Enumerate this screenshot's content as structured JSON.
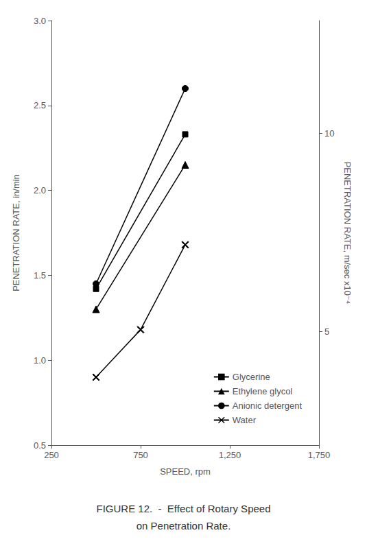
{
  "chart_data": {
    "type": "line",
    "title": "FIGURE 12.  -  Effect of Rotary Speed",
    "subtitle": "on Penetration Rate.",
    "x_label": "SPEED, rpm",
    "y_label": "PENETRATION RATE, in/min",
    "y2_label": "PENETRATION RATE, m/sec x10⁻⁴",
    "series": [
      {
        "name": "Glycerine",
        "color": "#000000",
        "marker": "square",
        "x": [
          500,
          1000
        ],
        "values": [
          1.42,
          2.33
        ]
      },
      {
        "name": "Ethylene glycol",
        "color": "#000000",
        "marker": "triangle",
        "x": [
          500,
          1000
        ],
        "values": [
          1.3,
          2.15
        ]
      },
      {
        "name": "Anionic detergent",
        "color": "#000000",
        "marker": "circle",
        "x": [
          500,
          1000
        ],
        "values": [
          1.45,
          2.6
        ]
      },
      {
        "name": "Water",
        "color": "#000000",
        "marker": "x",
        "x": [
          500,
          750,
          1000
        ],
        "values": [
          0.9,
          1.18,
          1.68
        ]
      }
    ],
    "xlim": [
      250,
      1750
    ],
    "xticks": [
      250,
      750,
      {
        "value": 1250,
        "label": "1,250"
      },
      {
        "value": 1750,
        "label": "1,750"
      }
    ],
    "ylim": [
      0.5,
      3.0
    ],
    "yticks": [
      0.5,
      {
        "value": 1.0,
        "label": "1.0"
      },
      1.5,
      {
        "value": 2.0,
        "label": "2.0"
      },
      2.5,
      {
        "value": 3.0,
        "label": "3.0"
      }
    ],
    "y2lim": [
      2.14,
      12.84
    ],
    "y2ticks": [
      5,
      10
    ],
    "grid": false,
    "legend": "lower right"
  }
}
